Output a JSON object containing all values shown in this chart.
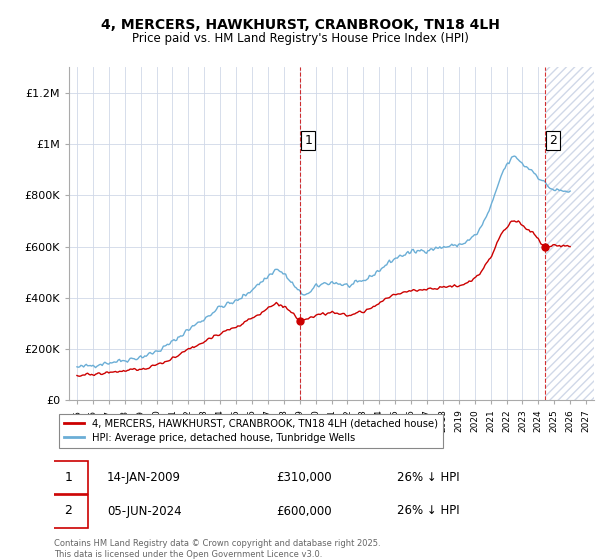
{
  "title": "4, MERCERS, HAWKHURST, CRANBROOK, TN18 4LH",
  "subtitle": "Price paid vs. HM Land Registry's House Price Index (HPI)",
  "ylabel_ticks": [
    "£0",
    "£200K",
    "£400K",
    "£600K",
    "£800K",
    "£1M",
    "£1.2M"
  ],
  "ytick_values": [
    0,
    200000,
    400000,
    600000,
    800000,
    1000000,
    1200000
  ],
  "ylim": [
    0,
    1300000
  ],
  "xlim_start": 1994.5,
  "xlim_end": 2027.5,
  "hpi_color": "#6baed6",
  "price_color": "#cc0000",
  "vline_color": "#cc0000",
  "purchase1_year": 2009.04,
  "purchase1_price": 310000,
  "purchase2_year": 2024.43,
  "purchase2_price": 600000,
  "legend_label1": "4, MERCERS, HAWKHURST, CRANBROOK, TN18 4LH (detached house)",
  "legend_label2": "HPI: Average price, detached house, Tunbridge Wells",
  "note1_date": "14-JAN-2009",
  "note1_price": "£310,000",
  "note1_hpi": "26% ↓ HPI",
  "note2_date": "05-JUN-2024",
  "note2_price": "£600,000",
  "note2_hpi": "26% ↓ HPI",
  "footer": "Contains HM Land Registry data © Crown copyright and database right 2025.\nThis data is licensed under the Open Government Licence v3.0.",
  "background_color": "#ffffff",
  "grid_color": "#d0d8e8",
  "hatch_color": "#d0d8e8",
  "hatch_start": 2024.43,
  "hatch_end": 2027.5
}
